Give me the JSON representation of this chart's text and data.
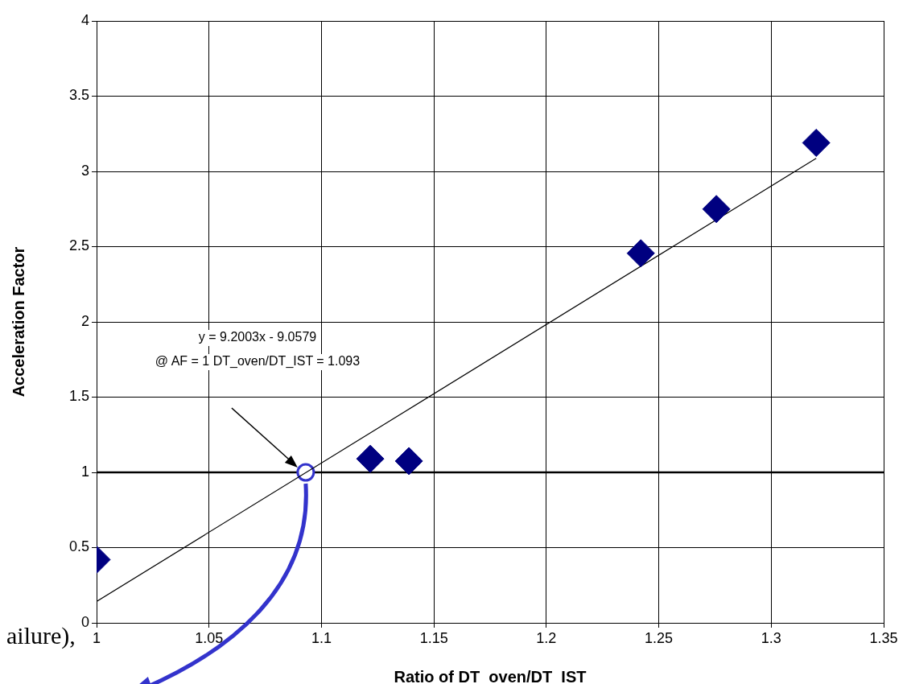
{
  "chart_data": {
    "type": "scatter",
    "xlabel": "Ratio of DT_oven/DT_IST",
    "ylabel": "Acceleration Factor",
    "xlim": [
      1,
      1.35
    ],
    "xticks": [
      1,
      1.05,
      1.1,
      1.15,
      1.2,
      1.25,
      1.3,
      1.35
    ],
    "ylim": [
      0,
      4
    ],
    "yticks": [
      0,
      0.5,
      1,
      1.5,
      2,
      2.5,
      3,
      3.5,
      4
    ],
    "grid": true,
    "legend": false,
    "marker": "diamond",
    "series": [
      {
        "color": "#000080",
        "x": [
          1.0,
          1.1217,
          1.1389,
          1.242,
          1.2756,
          1.32
        ],
        "values": [
          0.42,
          1.09,
          1.075,
          2.456,
          2.75,
          3.19
        ]
      },
      {
        "type": "line",
        "color": "#000000",
        "marker": "none",
        "x": [
          1,
          1.32
        ],
        "values": [
          0.142,
          3.087
        ]
      },
      {
        "type": "scatter",
        "color": "#3333cc",
        "marker": "circle",
        "x": [
          1.093
        ],
        "values": [
          1
        ]
      }
    ],
    "ref_lines": [
      {
        "axis": "y",
        "value": 1,
        "color": "#000000"
      }
    ],
    "annotations": [
      "y = 9.2003x - 9.0579",
      "@ AF = 1 DT_oven/DT_IST = 1.093",
      "ailure),"
    ]
  }
}
